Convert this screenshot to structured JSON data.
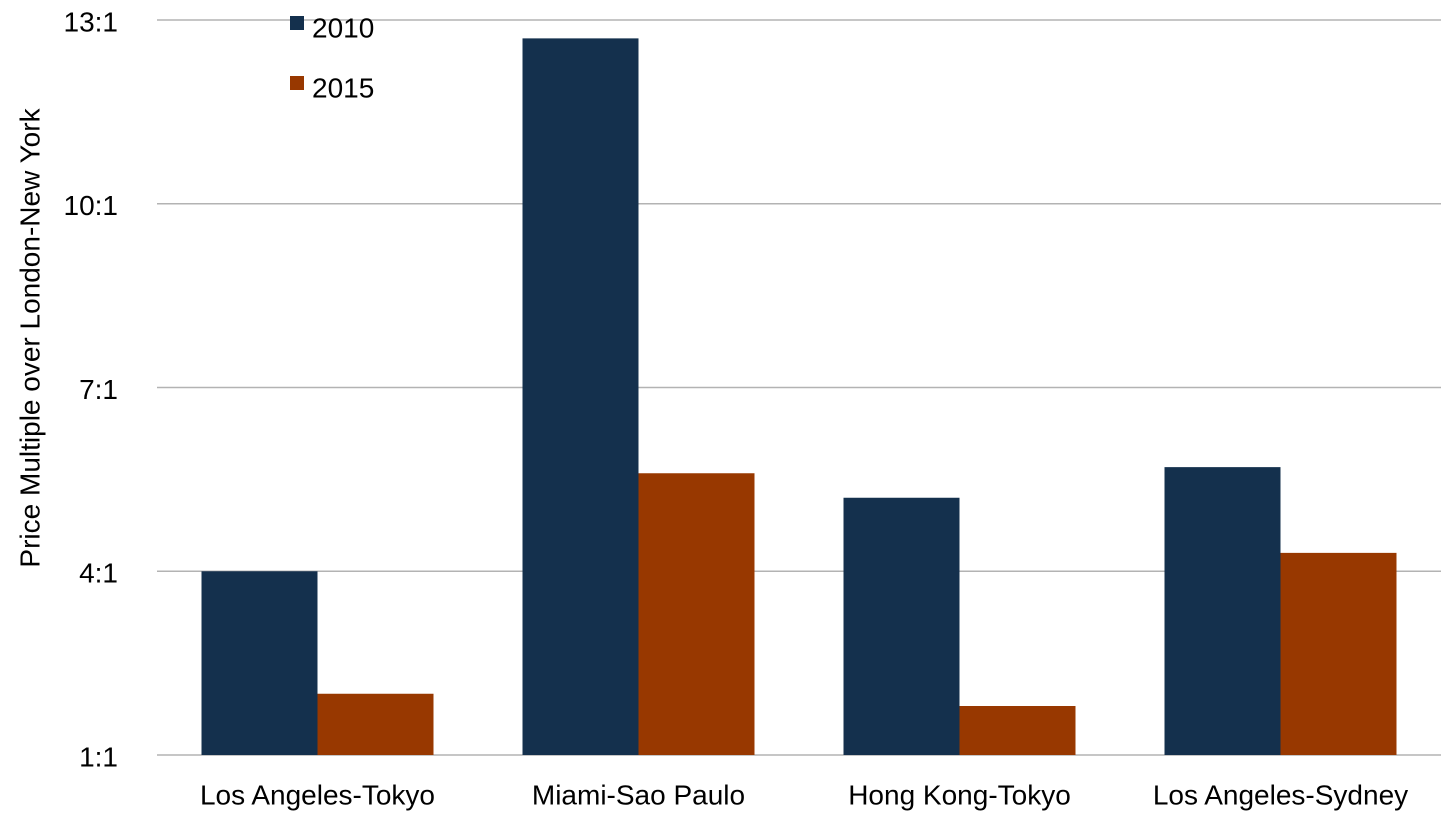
{
  "chart_data": {
    "type": "bar",
    "y_label": "Price Multiple over London-New York",
    "categories": [
      "Los Angeles-Tokyo",
      "Miami-Sao Paulo",
      "Hong Kong-Tokyo",
      "Los Angeles-Sydney"
    ],
    "series": [
      {
        "name": "2010",
        "color": "#14304d",
        "values": [
          4.0,
          12.7,
          5.2,
          5.7
        ]
      },
      {
        "name": "2015",
        "color": "#983800",
        "values": [
          2.0,
          5.6,
          1.8,
          4.3
        ]
      }
    ],
    "ylim": [
      1,
      13
    ],
    "yticks": [
      {
        "value": 1,
        "label": "1:1"
      },
      {
        "value": 4,
        "label": "4:1"
      },
      {
        "value": 7,
        "label": "7:1"
      },
      {
        "value": 10,
        "label": "10:1"
      },
      {
        "value": 13,
        "label": "13:1"
      }
    ],
    "grid": true,
    "legend": "top-left"
  }
}
